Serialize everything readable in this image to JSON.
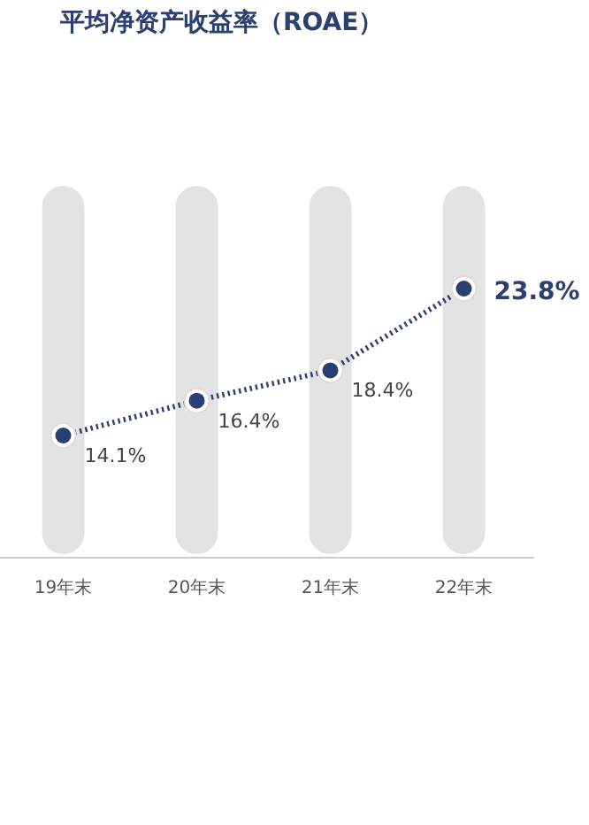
{
  "chart_data": {
    "type": "line",
    "title": "平均净资产收益率（ROAE）",
    "categories": [
      "19年末",
      "20年末",
      "21年末",
      "22年末"
    ],
    "series": [
      {
        "color": "#2b3f73",
        "values": [
          14.1,
          16.4,
          18.4,
          23.8
        ],
        "value_labels": [
          "14.1%",
          "16.4%",
          "18.4%",
          "23.8%"
        ]
      }
    ],
    "grid": "x",
    "tick_labels": "x",
    "marker": "circle",
    "line_style": "dotted"
  }
}
